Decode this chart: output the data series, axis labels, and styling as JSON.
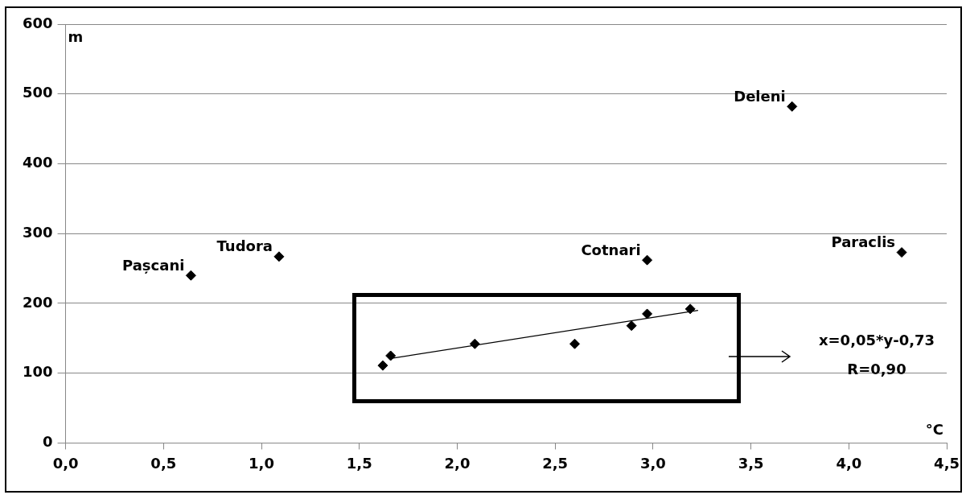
{
  "chart_data": {
    "type": "scatter",
    "xlabel": "°C",
    "ylabel": "m",
    "marker": "diamond",
    "grid": "y",
    "xlim": [
      0,
      4.5
    ],
    "ylim": [
      0,
      600
    ],
    "xticks": [
      {
        "value": 0,
        "label": "0,0"
      },
      {
        "value": 0.5,
        "label": "0,5"
      },
      {
        "value": 1,
        "label": "1,0"
      },
      {
        "value": 1.5,
        "label": "1,5"
      },
      {
        "value": 2,
        "label": "2,0"
      },
      {
        "value": 2.5,
        "label": "2,5"
      },
      {
        "value": 3,
        "label": "3,0"
      },
      {
        "value": 3.5,
        "label": "3,5"
      },
      {
        "value": 4,
        "label": "4,0"
      },
      {
        "value": 4.5,
        "label": "4,5"
      }
    ],
    "yticks": [
      0,
      100,
      200,
      300,
      400,
      500,
      600
    ],
    "series": [
      {
        "color": "#000000",
        "x": [
          0.64,
          1.09,
          2.97,
          3.71,
          4.27,
          1.62,
          1.66,
          2.09,
          2.6,
          2.89,
          2.97,
          3.19
        ],
        "values": [
          240,
          267,
          262,
          482,
          273,
          111,
          125,
          142,
          142,
          168,
          185,
          192
        ]
      },
      {
        "type": "line",
        "marker": "none",
        "color": "#000000",
        "x": [
          1.66,
          3.23
        ],
        "values": [
          121,
          190
        ]
      }
    ],
    "annotations": [
      {
        "text": "Pașcani",
        "x": 0.64,
        "y": 240
      },
      {
        "text": "Tudora",
        "x": 1.09,
        "y": 267
      },
      {
        "text": "Cotnari",
        "x": 2.97,
        "y": 262
      },
      {
        "text": "Deleni",
        "x": 3.71,
        "y": 482
      },
      {
        "text": "Paraclis",
        "x": 4.27,
        "y": 273
      },
      "x=0,05*y-0,73\nR=0,90"
    ]
  }
}
